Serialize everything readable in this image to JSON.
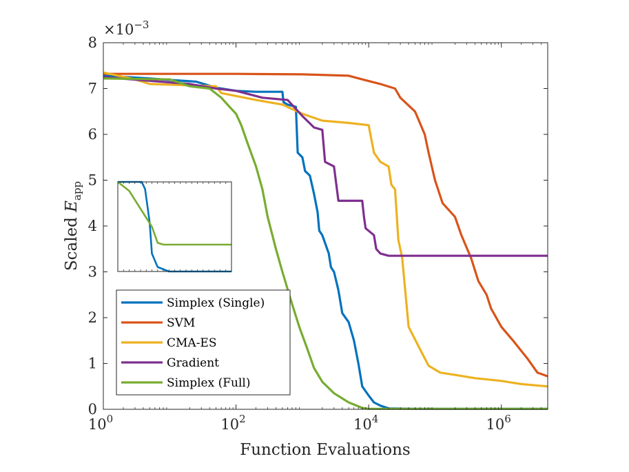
{
  "chart_data": {
    "type": "line",
    "xscale": "log",
    "xlabel": "Function Evaluations",
    "ylabel_prefix": "Scaled ",
    "ylabel_var": "E",
    "ylabel_sub": "app",
    "multiplier_base": "×10",
    "multiplier_exp": "−3",
    "xlim": [
      1,
      5000000
    ],
    "ylim": [
      0,
      8
    ],
    "xticks": [
      {
        "value": 1,
        "base": "10",
        "exp": "0"
      },
      {
        "value": 100,
        "base": "10",
        "exp": "2"
      },
      {
        "value": 10000,
        "base": "10",
        "exp": "4"
      },
      {
        "value": 1000000,
        "base": "10",
        "exp": "6"
      }
    ],
    "yticks": [
      {
        "value": 0,
        "label": "0"
      },
      {
        "value": 1,
        "label": "1"
      },
      {
        "value": 2,
        "label": "2"
      },
      {
        "value": 3,
        "label": "3"
      },
      {
        "value": 4,
        "label": "4"
      },
      {
        "value": 5,
        "label": "5"
      },
      {
        "value": 6,
        "label": "6"
      },
      {
        "value": 7,
        "label": "7"
      },
      {
        "value": 8,
        "label": "8"
      }
    ],
    "legend_position": "lower-left",
    "series": [
      {
        "name": "Simplex (Single)",
        "color": "#0072BD",
        "points": [
          [
            1,
            7.28
          ],
          [
            5,
            7.22
          ],
          [
            12,
            7.18
          ],
          [
            25,
            7.15
          ],
          [
            50,
            7.02
          ],
          [
            100,
            6.95
          ],
          [
            200,
            6.93
          ],
          [
            500,
            6.93
          ],
          [
            520,
            6.7
          ],
          [
            600,
            6.65
          ],
          [
            800,
            6.6
          ],
          [
            850,
            5.6
          ],
          [
            1000,
            5.5
          ],
          [
            1100,
            5.2
          ],
          [
            1300,
            5.1
          ],
          [
            1500,
            4.7
          ],
          [
            1700,
            4.3
          ],
          [
            1800,
            3.9
          ],
          [
            2000,
            3.8
          ],
          [
            2500,
            3.4
          ],
          [
            2700,
            3.1
          ],
          [
            3000,
            3.0
          ],
          [
            3500,
            2.6
          ],
          [
            4000,
            2.1
          ],
          [
            5000,
            1.9
          ],
          [
            6000,
            1.5
          ],
          [
            7000,
            1.0
          ],
          [
            8000,
            0.5
          ],
          [
            10000,
            0.3
          ],
          [
            12000,
            0.15
          ],
          [
            15000,
            0.08
          ],
          [
            20000,
            0.02
          ],
          [
            50000,
            0.01
          ],
          [
            5000000,
            0.01
          ]
        ]
      },
      {
        "name": "SVM",
        "color": "#D95319",
        "points": [
          [
            1,
            7.32
          ],
          [
            100,
            7.32
          ],
          [
            1000,
            7.31
          ],
          [
            5000,
            7.28
          ],
          [
            8000,
            7.2
          ],
          [
            15000,
            7.1
          ],
          [
            25000,
            7.0
          ],
          [
            30000,
            6.8
          ],
          [
            50000,
            6.5
          ],
          [
            70000,
            6.0
          ],
          [
            80000,
            5.6
          ],
          [
            100000,
            5.0
          ],
          [
            130000,
            4.5
          ],
          [
            200000,
            4.2
          ],
          [
            250000,
            3.8
          ],
          [
            350000,
            3.3
          ],
          [
            450000,
            2.8
          ],
          [
            600000,
            2.5
          ],
          [
            700000,
            2.2
          ],
          [
            1000000,
            1.8
          ],
          [
            1500000,
            1.5
          ],
          [
            2500000,
            1.1
          ],
          [
            3500000,
            0.8
          ],
          [
            5000000,
            0.72
          ]
        ]
      },
      {
        "name": "CMA-ES",
        "color": "#EDB120",
        "points": [
          [
            1,
            7.35
          ],
          [
            3,
            7.2
          ],
          [
            5,
            7.1
          ],
          [
            50,
            7.05
          ],
          [
            60,
            6.9
          ],
          [
            200,
            6.75
          ],
          [
            500,
            6.65
          ],
          [
            1000,
            6.45
          ],
          [
            2000,
            6.3
          ],
          [
            5000,
            6.25
          ],
          [
            10000,
            6.2
          ],
          [
            12000,
            5.6
          ],
          [
            15000,
            5.4
          ],
          [
            20000,
            5.3
          ],
          [
            22000,
            4.9
          ],
          [
            25000,
            4.8
          ],
          [
            28000,
            3.7
          ],
          [
            32000,
            3.3
          ],
          [
            40000,
            1.8
          ],
          [
            60000,
            1.3
          ],
          [
            80000,
            0.95
          ],
          [
            120000,
            0.8
          ],
          [
            200000,
            0.75
          ],
          [
            400000,
            0.68
          ],
          [
            1000000,
            0.62
          ],
          [
            2000000,
            0.55
          ],
          [
            5000000,
            0.5
          ]
        ]
      },
      {
        "name": "Gradient",
        "color": "#7E2F8E",
        "points": [
          [
            1,
            7.25
          ],
          [
            20,
            7.1
          ],
          [
            50,
            7.0
          ],
          [
            100,
            6.95
          ],
          [
            250,
            6.8
          ],
          [
            600,
            6.75
          ],
          [
            1000,
            6.4
          ],
          [
            1500,
            6.15
          ],
          [
            2000,
            6.1
          ],
          [
            2200,
            5.4
          ],
          [
            3000,
            5.3
          ],
          [
            3500,
            4.55
          ],
          [
            5000,
            4.55
          ],
          [
            8000,
            4.55
          ],
          [
            8500,
            4.2
          ],
          [
            9000,
            3.95
          ],
          [
            12000,
            3.8
          ],
          [
            13000,
            3.5
          ],
          [
            15000,
            3.4
          ],
          [
            20000,
            3.35
          ],
          [
            5000000,
            3.35
          ]
        ]
      },
      {
        "name": "Simplex (Full)",
        "color": "#77AC30",
        "points": [
          [
            1,
            7.22
          ],
          [
            10,
            7.2
          ],
          [
            20,
            7.05
          ],
          [
            40,
            7.0
          ],
          [
            60,
            6.8
          ],
          [
            80,
            6.6
          ],
          [
            100,
            6.45
          ],
          [
            120,
            6.2
          ],
          [
            150,
            5.8
          ],
          [
            200,
            5.3
          ],
          [
            250,
            4.8
          ],
          [
            300,
            4.2
          ],
          [
            400,
            3.5
          ],
          [
            500,
            3.0
          ],
          [
            700,
            2.3
          ],
          [
            900,
            1.8
          ],
          [
            1200,
            1.3
          ],
          [
            1500,
            0.9
          ],
          [
            2000,
            0.6
          ],
          [
            3000,
            0.35
          ],
          [
            5000,
            0.15
          ],
          [
            8000,
            0.03
          ],
          [
            10000,
            0.01
          ],
          [
            5000000,
            0.01
          ]
        ]
      }
    ],
    "inset": {
      "xlim": [
        0,
        100
      ],
      "ylim": [
        0,
        1
      ],
      "series": [
        {
          "color": "#0072BD",
          "points": [
            [
              0,
              1.0
            ],
            [
              21,
              1.0
            ],
            [
              24,
              0.92
            ],
            [
              28,
              0.55
            ],
            [
              30,
              0.2
            ],
            [
              35,
              0.05
            ],
            [
              45,
              0.0
            ],
            [
              100,
              0.0
            ]
          ]
        },
        {
          "color": "#77AC30",
          "points": [
            [
              0,
              1.0
            ],
            [
              10,
              0.9
            ],
            [
              20,
              0.7
            ],
            [
              30,
              0.5
            ],
            [
              35,
              0.32
            ],
            [
              40,
              0.3
            ],
            [
              60,
              0.3
            ],
            [
              100,
              0.3
            ]
          ]
        }
      ]
    }
  }
}
